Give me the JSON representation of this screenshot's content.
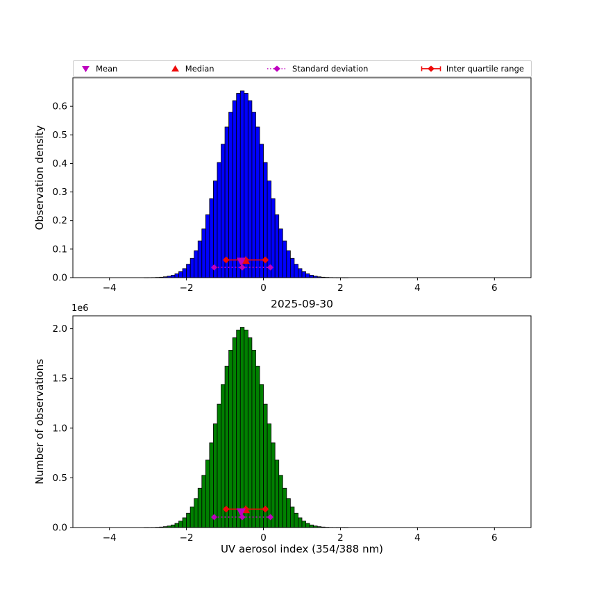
{
  "figure": {
    "title": "2025-09-30",
    "xlabel": "UV aerosol index (354/388 nm)",
    "offset_text": "1e6",
    "background": "#ffffff"
  },
  "legend": {
    "items": [
      {
        "label": "Mean",
        "marker": "triangle-down",
        "color": "#bf00bf"
      },
      {
        "label": "Median",
        "marker": "triangle-up",
        "color": "#ee0a0a"
      },
      {
        "label": "Standard deviation",
        "marker": "diamond-dotted-line",
        "color": "#bf00bf"
      },
      {
        "label": "Inter quartile range",
        "marker": "diamond-solid-line",
        "color": "#ee0a0a"
      }
    ]
  },
  "chart_data": [
    {
      "type": "bar",
      "subtype": "histogram",
      "ylabel": "Observation density",
      "color": "#0000ff",
      "edge_color": "#000000",
      "bin_start": -3.1,
      "bin_width": 0.1,
      "values": [
        0.0001,
        0.0003,
        0.0005,
        0.001,
        0.0017,
        0.003,
        0.0051,
        0.0084,
        0.0135,
        0.021,
        0.0318,
        0.047,
        0.0675,
        0.0945,
        0.1286,
        0.1706,
        0.2203,
        0.2768,
        0.3386,
        0.4032,
        0.4674,
        0.5275,
        0.5795,
        0.6198,
        0.6453,
        0.654,
        0.6453,
        0.6198,
        0.5795,
        0.5275,
        0.4674,
        0.4032,
        0.3386,
        0.2768,
        0.2203,
        0.1706,
        0.1286,
        0.0945,
        0.0675,
        0.047,
        0.0318,
        0.021,
        0.0135,
        0.0084,
        0.0051,
        0.003,
        0.0017,
        0.001,
        0.0005,
        0.0003,
        0.0001,
        5e-05,
        2e-05
      ],
      "xlim": [
        -4.95,
        6.95
      ],
      "ylim": [
        0,
        0.7
      ],
      "xtick_values": [
        -4,
        -2,
        0,
        2,
        4,
        6
      ],
      "xtick_labels": [
        "−4",
        "−2",
        "0",
        "2",
        "4",
        "6"
      ],
      "ytick_values": [
        0,
        0.1,
        0.2,
        0.3,
        0.4,
        0.5,
        0.6
      ],
      "ytick_labels": [
        "0.0",
        "0.1",
        "0.2",
        "0.3",
        "0.4",
        "0.5",
        "0.6"
      ],
      "grid": false,
      "markers": {
        "mean": {
          "x": -0.58,
          "y": 0.055
        },
        "median": {
          "x": -0.46,
          "y": 0.062
        },
        "std": {
          "x1": -1.28,
          "center": -0.55,
          "x2": 0.18,
          "y": 0.036
        },
        "iqr": {
          "x1": -0.97,
          "center": -0.46,
          "x2": 0.05,
          "y": 0.062
        }
      }
    },
    {
      "type": "bar",
      "subtype": "histogram",
      "ylabel": "Number of observations",
      "y_units": "1e6",
      "color": "#008000",
      "edge_color": "#000000",
      "bin_start": -3.1,
      "bin_width": 0.1,
      "values": [
        0.0003,
        0.0009,
        0.0016,
        0.003,
        0.0053,
        0.0092,
        0.0157,
        0.0259,
        0.0416,
        0.0647,
        0.098,
        0.1448,
        0.2079,
        0.2911,
        0.3961,
        0.5254,
        0.6785,
        0.8525,
        1.0429,
        1.2419,
        1.4396,
        1.6247,
        1.7849,
        1.909,
        1.9875,
        2.0143,
        1.9875,
        1.909,
        1.7849,
        1.6247,
        1.4396,
        1.2419,
        1.0429,
        0.8525,
        0.6785,
        0.5254,
        0.3961,
        0.2911,
        0.2079,
        0.1448,
        0.098,
        0.0647,
        0.0416,
        0.0259,
        0.0157,
        0.0092,
        0.0053,
        0.003,
        0.0016,
        0.0009,
        0.0003,
        0.0002,
        0.0001
      ],
      "xlim": [
        -4.95,
        6.95
      ],
      "ylim": [
        0,
        2.13
      ],
      "xtick_values": [
        -4,
        -2,
        0,
        2,
        4,
        6
      ],
      "xtick_labels": [
        "−4",
        "−2",
        "0",
        "2",
        "4",
        "6"
      ],
      "ytick_values": [
        0,
        0.5,
        1.0,
        1.5,
        2.0
      ],
      "ytick_labels": [
        "0.0",
        "0.5",
        "1.0",
        "1.5",
        "2.0"
      ],
      "grid": false,
      "markers": {
        "mean": {
          "x": -0.58,
          "y": 0.15
        },
        "median": {
          "x": -0.46,
          "y": 0.185
        },
        "std": {
          "x1": -1.28,
          "center": -0.55,
          "x2": 0.18,
          "y": 0.105
        },
        "iqr": {
          "x1": -0.97,
          "center": -0.46,
          "x2": 0.05,
          "y": 0.185
        }
      }
    }
  ]
}
